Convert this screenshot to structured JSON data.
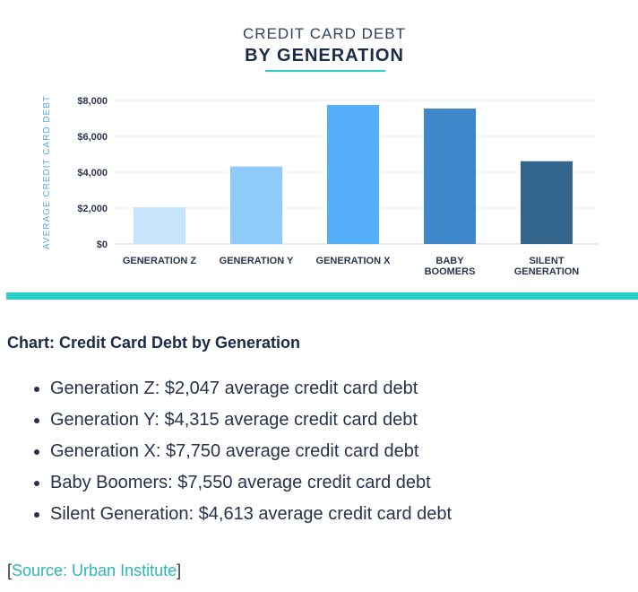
{
  "chart_data": {
    "type": "bar",
    "title": "CREDIT CARD DEBT",
    "subtitle": "BY GENERATION",
    "ylabel": "AVERAGE CREDIT CARD DEBT",
    "ylim": [
      0,
      8000
    ],
    "yticks": [
      "$0",
      "$2,000",
      "$4,000",
      "$6,000",
      "$8,000"
    ],
    "ytick_values": [
      0,
      2000,
      4000,
      6000,
      8000
    ],
    "grid": true,
    "categories": [
      [
        "GENERATION Z"
      ],
      [
        "GENERATION Y"
      ],
      [
        "GENERATION X"
      ],
      [
        "BABY",
        "BOOMERS"
      ],
      [
        "SILENT",
        "GENERATION"
      ]
    ],
    "values": [
      2047,
      4315,
      7750,
      7550,
      4613
    ],
    "colors": [
      "#c7e4fc",
      "#8ecbfb",
      "#54aff8",
      "#3f87cb",
      "#33658d"
    ],
    "accent_color": "#2bcfc8"
  },
  "caption": "Chart: Credit Card Debt by Generation",
  "summary": [
    "Generation Z: $2,047 average credit card debt",
    "Generation Y: $4,315 average credit card debt",
    "Generation X: $7,750 average credit card debt",
    "Baby Boomers: $7,550 average credit card debt",
    "Silent Generation: $4,613 average credit card debt"
  ],
  "source": {
    "open": "[",
    "link_text": "Source: Urban Institute",
    "close": "]"
  }
}
